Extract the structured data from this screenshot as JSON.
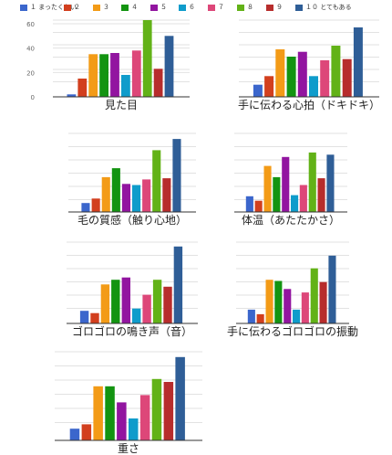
{
  "legend": [
    {
      "label": "１ まったくない",
      "color": "#3b66cc"
    },
    {
      "label": "２",
      "color": "#d23f1e"
    },
    {
      "label": "３",
      "color": "#f39b17"
    },
    {
      "label": "４",
      "color": "#139411"
    },
    {
      "label": "５",
      "color": "#9215a0"
    },
    {
      "label": "６",
      "color": "#0f9ccb"
    },
    {
      "label": "７",
      "color": "#dd4779"
    },
    {
      "label": "８",
      "color": "#62b217"
    },
    {
      "label": "９",
      "color": "#b72d2c"
    },
    {
      "label": "１０ とてもある",
      "color": "#2f5e97"
    }
  ],
  "chart_data": [
    {
      "type": "bar",
      "title": "見た目",
      "categories": [
        "1",
        "2",
        "3",
        "4",
        "5",
        "6",
        "7",
        "8",
        "9",
        "10"
      ],
      "values": [
        2,
        15,
        35,
        35,
        36,
        18,
        38,
        63,
        23,
        50
      ],
      "ylim": [
        0,
        63
      ],
      "yticks": [
        0,
        20,
        40,
        60
      ],
      "grid": true
    },
    {
      "type": "bar",
      "title": "手に伝わる心拍（ドキドキ）",
      "categories": [
        "1",
        "2",
        "3",
        "4",
        "5",
        "6",
        "7",
        "8",
        "9",
        "10"
      ],
      "values": [
        10,
        17,
        39,
        33,
        37,
        17,
        30,
        42,
        31,
        57
      ],
      "ylim": [
        0,
        63
      ],
      "grid": true
    },
    {
      "type": "bar",
      "title": "毛の質感（触り心地）",
      "categories": [
        "1",
        "2",
        "3",
        "4",
        "5",
        "6",
        "7",
        "8",
        "9",
        "10"
      ],
      "values": [
        8,
        12,
        31,
        39,
        25,
        24,
        29,
        55,
        30,
        65
      ],
      "ylim": [
        0,
        70
      ],
      "grid": true
    },
    {
      "type": "bar",
      "title": "体温（あたたかさ）",
      "categories": [
        "1",
        "2",
        "3",
        "4",
        "5",
        "6",
        "7",
        "8",
        "9",
        "10"
      ],
      "values": [
        14,
        10,
        41,
        31,
        49,
        15,
        24,
        53,
        30,
        51
      ],
      "ylim": [
        0,
        70
      ],
      "grid": true
    },
    {
      "type": "bar",
      "title": "ゴロゴロの鳴き声（音）",
      "categories": [
        "1",
        "2",
        "3",
        "4",
        "5",
        "6",
        "7",
        "8",
        "9",
        "10"
      ],
      "values": [
        11,
        9,
        34,
        38,
        40,
        13,
        25,
        38,
        32,
        67
      ],
      "ylim": [
        0,
        70
      ],
      "grid": true
    },
    {
      "type": "bar",
      "title": "手に伝わるゴロゴロの振動",
      "categories": [
        "1",
        "2",
        "3",
        "4",
        "5",
        "6",
        "7",
        "8",
        "9",
        "10"
      ],
      "values": [
        12,
        8,
        38,
        37,
        30,
        12,
        27,
        48,
        36,
        59
      ],
      "ylim": [
        0,
        70
      ],
      "grid": true
    },
    {
      "type": "bar",
      "title": "重さ",
      "categories": [
        "1",
        "2",
        "3",
        "4",
        "5",
        "6",
        "7",
        "8",
        "9",
        "10"
      ],
      "values": [
        8,
        11,
        37,
        37,
        26,
        15,
        31,
        42,
        40,
        57
      ],
      "ylim": [
        0,
        60
      ],
      "grid": true
    }
  ]
}
